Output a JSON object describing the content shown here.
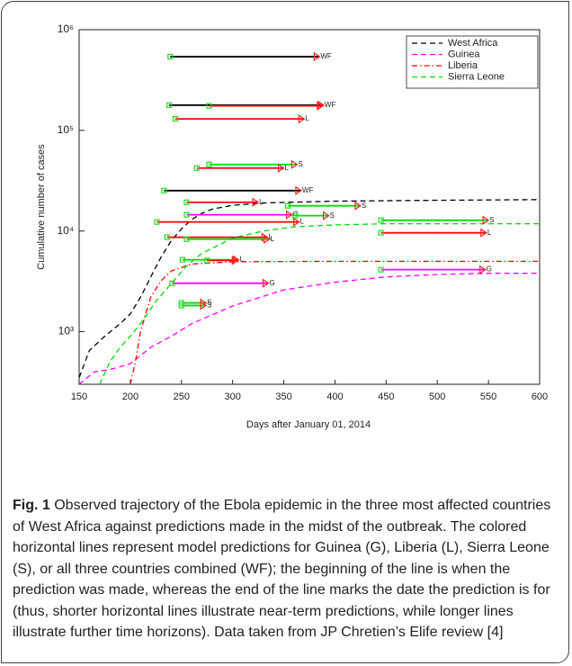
{
  "chart_data": {
    "type": "line",
    "x_label": "Days after January 01, 2014",
    "y_label": "Cumulative number of cases",
    "xlim": [
      150,
      600
    ],
    "xticks": [
      150,
      200,
      250,
      300,
      350,
      400,
      450,
      500,
      550,
      600
    ],
    "ylim": [
      300,
      1000000
    ],
    "log_y": true,
    "yticks": [
      {
        "value": 1000,
        "label": "10³"
      },
      {
        "value": 10000,
        "label": "10⁴"
      },
      {
        "value": 100000,
        "label": "10⁵"
      },
      {
        "value": 1000000,
        "label": "10⁶"
      }
    ],
    "legend_position": "upper right",
    "series": [
      {
        "name": "West Africa",
        "color": "#000000",
        "dash": "dashed",
        "x": [
          150,
          160,
          175,
          190,
          200,
          210,
          220,
          230,
          240,
          250,
          260,
          270,
          280,
          300,
          330,
          400,
          500,
          600
        ],
        "values": [
          350,
          650,
          900,
          1200,
          1500,
          2200,
          3500,
          5500,
          8000,
          10500,
          13000,
          15000,
          16500,
          18000,
          19000,
          19800,
          20200,
          20500
        ]
      },
      {
        "name": "Guinea",
        "color": "#ff00ff",
        "dash": "dashed",
        "x": [
          150,
          165,
          180,
          200,
          220,
          240,
          260,
          300,
          350,
          400,
          450,
          500,
          550,
          600
        ],
        "values": [
          300,
          400,
          420,
          480,
          700,
          900,
          1200,
          1800,
          2600,
          3100,
          3500,
          3700,
          3800,
          3800
        ]
      },
      {
        "name": "Liberia",
        "color": "#ff0000",
        "dash": "dashdot",
        "x": [
          200,
          205,
          210,
          215,
          220,
          230,
          240,
          260,
          300,
          400,
          600
        ],
        "values": [
          300,
          500,
          1000,
          1500,
          2200,
          3200,
          4000,
          4700,
          4950,
          5000,
          5000
        ]
      },
      {
        "name": "Sierra Leone",
        "color": "#00dd00",
        "dash": "dashed",
        "x": [
          170,
          180,
          190,
          200,
          210,
          225,
          240,
          255,
          270,
          300,
          330,
          360,
          400,
          450,
          600
        ],
        "values": [
          300,
          500,
          700,
          900,
          1200,
          2000,
          3000,
          4500,
          6000,
          8500,
          10000,
          11000,
          11500,
          11800,
          11800
        ]
      }
    ],
    "predictions": [
      {
        "start": 239,
        "end": 385,
        "value": 540000,
        "color": "#000000",
        "label": "WF"
      },
      {
        "start": 238,
        "end": 389,
        "value": 178000,
        "color": "#000000",
        "label": "WF"
      },
      {
        "start": 277,
        "end": 388,
        "value": 175000,
        "color": "#ff0000"
      },
      {
        "start": 244,
        "end": 370,
        "value": 130000,
        "color": "#ff0000",
        "label": "L"
      },
      {
        "start": 277,
        "end": 363,
        "value": 45800,
        "color": "#00dd00",
        "label": "S"
      },
      {
        "start": 265,
        "end": 350,
        "value": 42200,
        "color": "#ff0000",
        "label": "L"
      },
      {
        "start": 233,
        "end": 367,
        "value": 25200,
        "color": "#000000",
        "label": "WF"
      },
      {
        "start": 255,
        "end": 325,
        "value": 19300,
        "color": "#ff0000",
        "label": "L"
      },
      {
        "start": 354,
        "end": 425,
        "value": 17800,
        "color": "#00dd00",
        "label": "S"
      },
      {
        "start": 255,
        "end": 358,
        "value": 14500,
        "color": "#ff00ff",
        "label": "G"
      },
      {
        "start": 361,
        "end": 394,
        "value": 14200,
        "color": "#00dd00",
        "label": "S"
      },
      {
        "start": 445,
        "end": 550,
        "value": 12800,
        "color": "#00dd00",
        "label": "S"
      },
      {
        "start": 226,
        "end": 365,
        "value": 12300,
        "color": "#ff0000",
        "label": "L"
      },
      {
        "start": 445,
        "end": 548,
        "value": 9600,
        "color": "#ff0000",
        "label": "L"
      },
      {
        "start": 236,
        "end": 334,
        "value": 8670,
        "color": "#ff0000",
        "label": "L"
      },
      {
        "start": 255,
        "end": 336,
        "value": 8300,
        "color": "#00dd00",
        "label": "L"
      },
      {
        "start": 251,
        "end": 306,
        "value": 5180,
        "color": "#00dd00",
        "label": "L"
      },
      {
        "start": 275,
        "end": 305,
        "value": 5100,
        "color": "#ff0000"
      },
      {
        "start": 445,
        "end": 547,
        "value": 4130,
        "color": "#ff00ff",
        "label": "G"
      },
      {
        "start": 241,
        "end": 335,
        "value": 3030,
        "color": "#ff00ff",
        "label": "G"
      },
      {
        "start": 250,
        "end": 274,
        "value": 1930,
        "color": "#00dd00",
        "label": "S"
      },
      {
        "start": 250,
        "end": 274,
        "value": 1820,
        "color": "#00dd00",
        "label": "S"
      }
    ]
  },
  "caption": {
    "label": "Fig. 1",
    "text": "Observed trajectory of the Ebola epidemic in the three most affected countries of West Africa against predictions made in the midst of the outbreak. The colored horizontal lines represent model predictions for Guinea (G), Liberia (L), Sierra Leone (S), or all three countries combined (WF); the beginning of the line is when the prediction was made, whereas the end of the line marks the date the prediction is for (thus, shorter horizontal lines illustrate near-term predictions, while longer lines illustrate further time horizons). Data taken from JP Chretien’s Elife review [4]"
  }
}
